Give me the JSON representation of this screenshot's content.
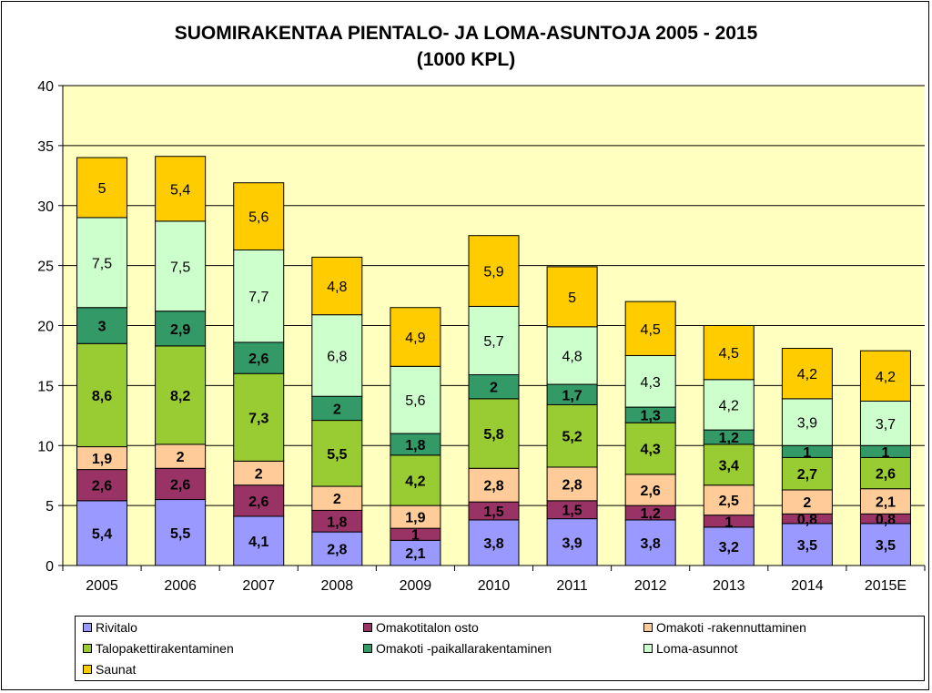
{
  "chart_data": {
    "type": "bar",
    "stacked": true,
    "title": "SUOMIRAKENTAA PIENTALO- JA LOMA-ASUNTOJA 2005 - 2015",
    "subtitle": "(1000 KPL)",
    "xlabel": "",
    "ylabel": "",
    "ylim": [
      0,
      40
    ],
    "yticks": [
      0,
      5,
      10,
      15,
      20,
      25,
      30,
      35,
      40
    ],
    "grid": true,
    "legend_position": "bottom",
    "plot_background": "#ffffc0",
    "categories": [
      "2005",
      "2006",
      "2007",
      "2008",
      "2009",
      "2010",
      "2011",
      "2012",
      "2013",
      "2014",
      "2015E"
    ],
    "series": [
      {
        "name": "Rivitalo",
        "color": "#9999ff",
        "values": [
          5.4,
          5.5,
          4.1,
          2.8,
          2.1,
          3.8,
          3.9,
          3.8,
          3.2,
          3.5,
          3.5
        ],
        "labels": [
          "5,4",
          "5,5",
          "4,1",
          "2,8",
          "2,1",
          "3,8",
          "3,9",
          "3,8",
          "3,2",
          "3,5",
          "3,5"
        ]
      },
      {
        "name": "Omakotitalon osto",
        "color": "#993366",
        "values": [
          2.6,
          2.6,
          2.6,
          1.8,
          1,
          1.5,
          1.5,
          1.2,
          1,
          0.8,
          0.8
        ],
        "labels": [
          "2,6",
          "2,6",
          "2,6",
          "1,8",
          "1",
          "1,5",
          "1,5",
          "1,2",
          "1",
          "0,8",
          "0,8"
        ]
      },
      {
        "name": "Omakoti -rakennuttaminen",
        "color": "#ffcc99",
        "values": [
          1.9,
          2,
          2,
          2,
          1.9,
          2.8,
          2.8,
          2.6,
          2.5,
          2,
          2.1
        ],
        "labels": [
          "1,9",
          "2",
          "2",
          "2",
          "1,9",
          "2,8",
          "2,8",
          "2,6",
          "2,5",
          "2",
          "2,1"
        ]
      },
      {
        "name": "Talopakettirakentaminen",
        "color": "#99cc33",
        "values": [
          8.6,
          8.2,
          7.3,
          5.5,
          4.2,
          5.8,
          5.2,
          4.3,
          3.4,
          2.7,
          2.6
        ],
        "labels": [
          "8,6",
          "8,2",
          "7,3",
          "5,5",
          "4,2",
          "5,8",
          "5,2",
          "4,3",
          "3,4",
          "2,7",
          "2,6"
        ]
      },
      {
        "name": "Omakoti -paikallarakentaminen",
        "color": "#339966",
        "values": [
          3,
          2.9,
          2.6,
          2,
          1.8,
          2,
          1.7,
          1.3,
          1.2,
          1,
          1
        ],
        "labels": [
          "3",
          "2,9",
          "2,6",
          "2",
          "1,8",
          "2",
          "1,7",
          "1,3",
          "1,2",
          "1",
          "1"
        ]
      },
      {
        "name": "Loma-asunnot",
        "color": "#ccffcc",
        "values": [
          7.5,
          7.5,
          7.7,
          6.8,
          5.6,
          5.7,
          4.8,
          4.3,
          4.2,
          3.9,
          3.7
        ],
        "labels": [
          "7,5",
          "7,5",
          "7,7",
          "6,8",
          "5,6",
          "5,7",
          "4,8",
          "4,3",
          "4,2",
          "3,9",
          "3,7"
        ]
      },
      {
        "name": "Saunat",
        "color": "#ffcc00",
        "values": [
          5,
          5.4,
          5.6,
          4.8,
          4.9,
          5.9,
          5,
          4.5,
          4.5,
          4.2,
          4.2
        ],
        "labels": [
          "5",
          "5,4",
          "5,6",
          "4,8",
          "4,9",
          "5,9",
          "5",
          "4,5",
          "4,5",
          "4,2",
          "4,2"
        ]
      }
    ],
    "bold_label_series": [
      "Rivitalo",
      "Omakotitalon osto",
      "Omakoti -rakennuttaminen",
      "Talopakettirakentaminen",
      "Omakoti -paikallarakentaminen"
    ]
  }
}
